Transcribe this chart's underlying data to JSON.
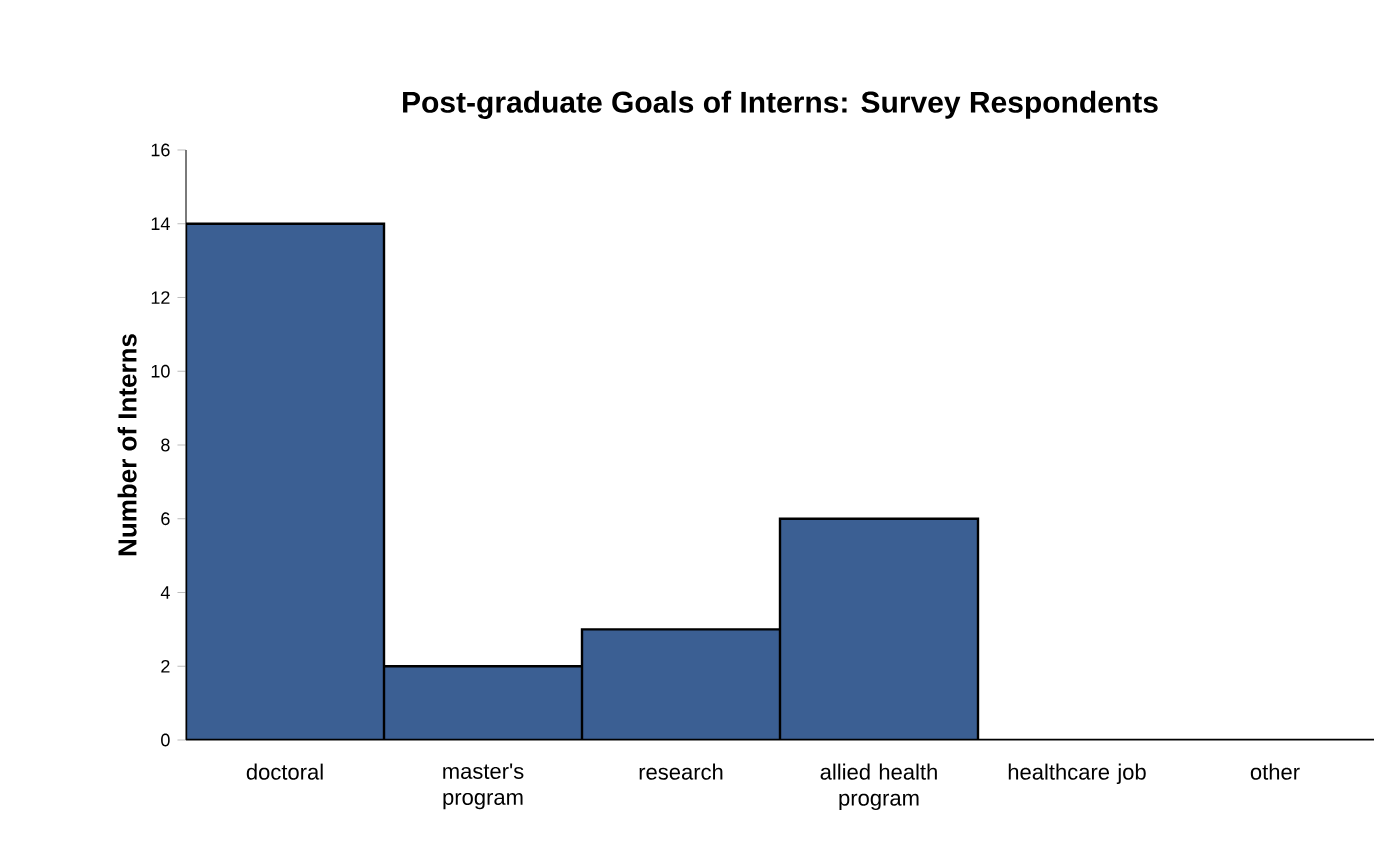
{
  "chart_data": {
    "type": "bar",
    "title": "Post-graduate Goals of Interns: Survey Respondents",
    "ylabel": "Number of Interns",
    "categories": [
      "doctoral",
      "master's program",
      "research",
      "allied health program",
      "healthcare job",
      "other"
    ],
    "values": [
      14,
      2,
      3,
      6,
      0,
      0
    ],
    "color": "#3b5f93",
    "ylim": [
      0,
      16
    ],
    "yticks": [
      0,
      2,
      4,
      6,
      8,
      10,
      12,
      14,
      16
    ]
  }
}
